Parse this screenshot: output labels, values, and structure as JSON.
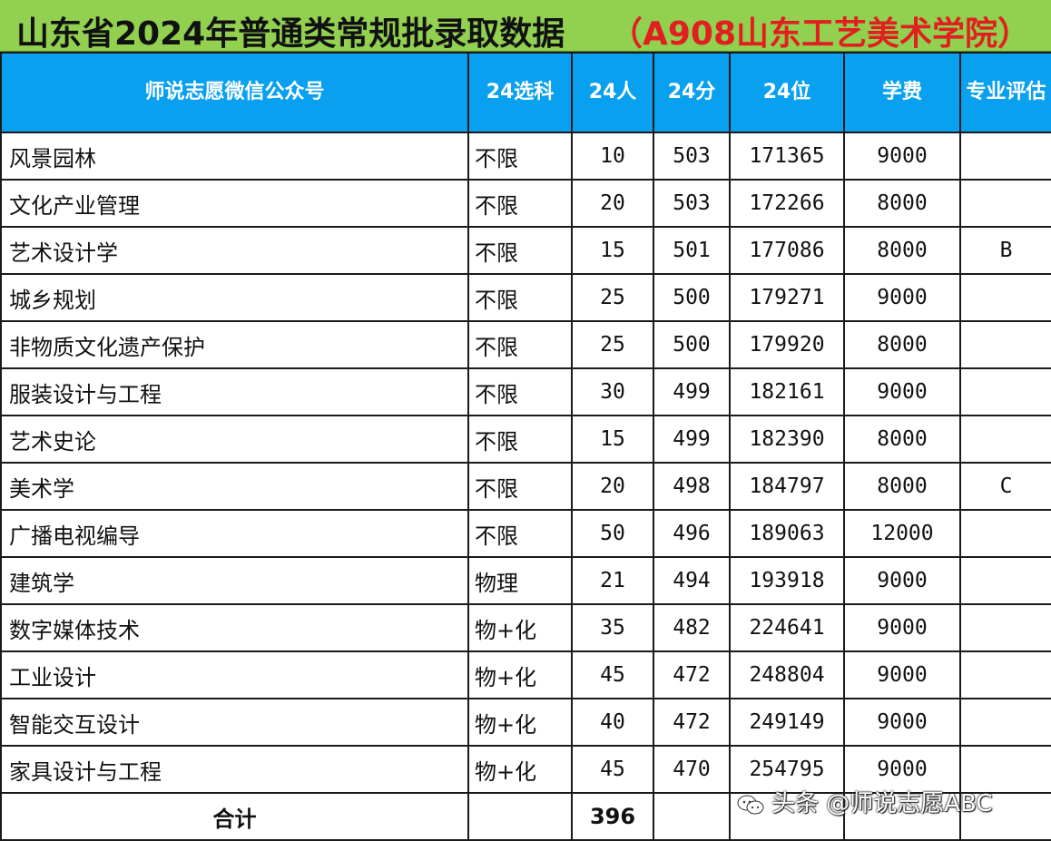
{
  "title": {
    "main": "山东省2024年普通类常规批录取数据",
    "school": "（A908山东工艺美术学院）"
  },
  "table": {
    "headers": [
      "师说志愿微信公众号",
      "24选科",
      "24人",
      "24分",
      "24位",
      "学费",
      "专业评估"
    ],
    "rows": [
      {
        "major": "风景园林",
        "subject": "不限",
        "count": "10",
        "score": "503",
        "rank": "171365",
        "fee": "9000",
        "eval": ""
      },
      {
        "major": "文化产业管理",
        "subject": "不限",
        "count": "20",
        "score": "503",
        "rank": "172266",
        "fee": "8000",
        "eval": ""
      },
      {
        "major": "艺术设计学",
        "subject": "不限",
        "count": "15",
        "score": "501",
        "rank": "177086",
        "fee": "8000",
        "eval": "B"
      },
      {
        "major": "城乡规划",
        "subject": "不限",
        "count": "25",
        "score": "500",
        "rank": "179271",
        "fee": "9000",
        "eval": ""
      },
      {
        "major": "非物质文化遗产保护",
        "subject": "不限",
        "count": "25",
        "score": "500",
        "rank": "179920",
        "fee": "8000",
        "eval": ""
      },
      {
        "major": "服装设计与工程",
        "subject": "不限",
        "count": "30",
        "score": "499",
        "rank": "182161",
        "fee": "9000",
        "eval": ""
      },
      {
        "major": "艺术史论",
        "subject": "不限",
        "count": "15",
        "score": "499",
        "rank": "182390",
        "fee": "8000",
        "eval": ""
      },
      {
        "major": "美术学",
        "subject": "不限",
        "count": "20",
        "score": "498",
        "rank": "184797",
        "fee": "8000",
        "eval": "C"
      },
      {
        "major": "广播电视编导",
        "subject": "不限",
        "count": "50",
        "score": "496",
        "rank": "189063",
        "fee": "12000",
        "eval": ""
      },
      {
        "major": "建筑学",
        "subject": "物理",
        "count": "21",
        "score": "494",
        "rank": "193918",
        "fee": "9000",
        "eval": ""
      },
      {
        "major": "数字媒体技术",
        "subject": "物+化",
        "count": "35",
        "score": "482",
        "rank": "224641",
        "fee": "9000",
        "eval": ""
      },
      {
        "major": "工业设计",
        "subject": "物+化",
        "count": "45",
        "score": "472",
        "rank": "248804",
        "fee": "9000",
        "eval": ""
      },
      {
        "major": "智能交互设计",
        "subject": "物+化",
        "count": "40",
        "score": "472",
        "rank": "249149",
        "fee": "9000",
        "eval": ""
      },
      {
        "major": "家具设计与工程",
        "subject": "物+化",
        "count": "45",
        "score": "470",
        "rank": "254795",
        "fee": "9000",
        "eval": ""
      }
    ],
    "total": {
      "label": "合计",
      "count": "396"
    }
  },
  "watermark": {
    "text": "头条 @师说志愿ABC",
    "icon": "wechat-icon"
  },
  "colors": {
    "title_bg": "#92d050",
    "title_school": "#e02020",
    "header_bg": "#0aa0f0",
    "border": "#1a1a1a"
  }
}
